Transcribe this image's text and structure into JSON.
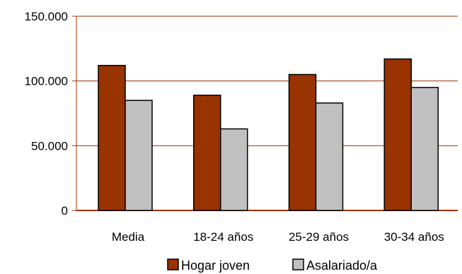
{
  "chart_data": {
    "type": "bar",
    "title": "",
    "xlabel": "",
    "ylabel": "",
    "categories": [
      "Media",
      "18-24 años",
      "25-29 años",
      "30-34 años"
    ],
    "series": [
      {
        "name": "Hogar joven",
        "values": [
          112000,
          89000,
          105000,
          117000
        ],
        "color": "#993300"
      },
      {
        "name": "Asalariado/a",
        "values": [
          85000,
          63000,
          83000,
          95000
        ],
        "color": "#c0c0c0"
      }
    ],
    "ylim": [
      0,
      150000
    ],
    "yticks": [
      0,
      50000,
      100000,
      150000
    ],
    "ytick_labels": [
      "0",
      "50.000",
      "100.000",
      "150.000"
    ],
    "grid": true,
    "gridline_color": "#993300",
    "legend_position": "bottom"
  }
}
